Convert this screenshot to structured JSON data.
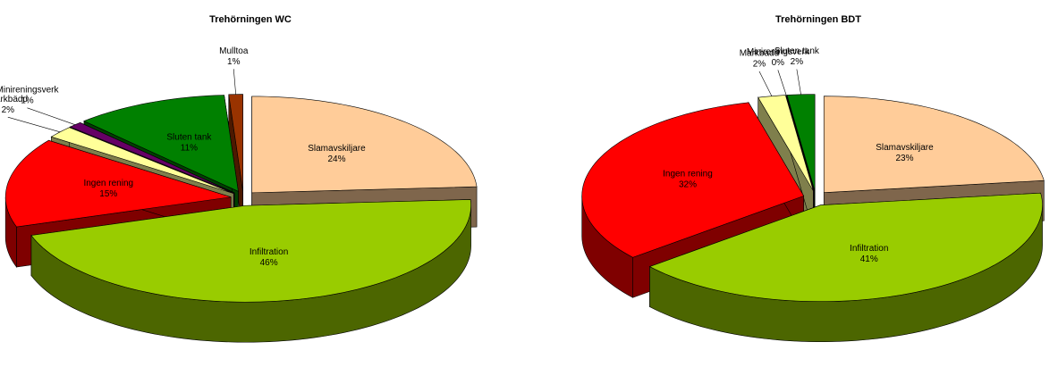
{
  "chart_data": [
    {
      "type": "pie",
      "title": "Trehörningen WC",
      "categories": [
        "Slamavskiljare",
        "Infiltration",
        "Ingen rening",
        "Markbädd",
        "Minireningsverk",
        "Sluten tank",
        "Mulltoa"
      ],
      "values": [
        24,
        46,
        15,
        2,
        1,
        11,
        1
      ],
      "value_labels": [
        "24%",
        "46%",
        "15%",
        "2%",
        "1%",
        "11%",
        "1%"
      ],
      "colors": [
        "#ffcc99",
        "#99cc00",
        "#ff0000",
        "#ffff99",
        "#660066",
        "#008000",
        "#993300"
      ]
    },
    {
      "type": "pie",
      "title": "Trehörningen BDT",
      "categories": [
        "Slamavskiljare",
        "Infiltration",
        "Ingen rening",
        "Markbädd",
        "Minireningsverk",
        "Sluten tank"
      ],
      "values": [
        23,
        41,
        32,
        2,
        0,
        2
      ],
      "value_labels": [
        "23%",
        "41%",
        "32%",
        "2%",
        "0%",
        "2%"
      ],
      "colors": [
        "#ffcc99",
        "#99cc00",
        "#ff0000",
        "#ffff99",
        "#660066",
        "#008000"
      ]
    }
  ]
}
